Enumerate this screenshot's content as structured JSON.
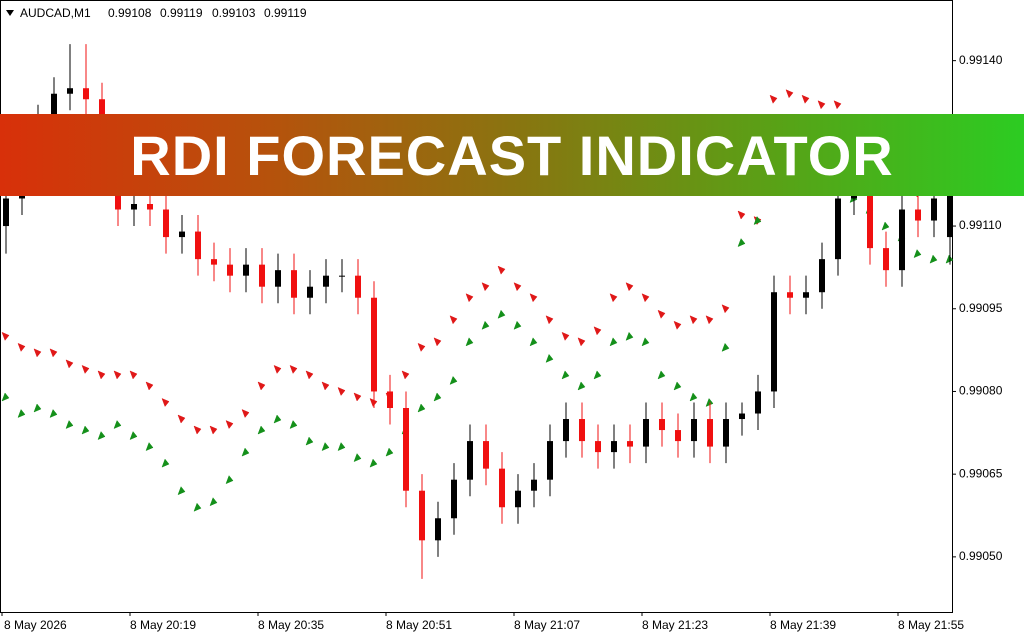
{
  "banner": {
    "title": "RDI FORECAST INDICATOR"
  },
  "chart_data": {
    "type": "candlestick",
    "title": "AUDCAD,M1",
    "categories": [
      "8 May 2026",
      null,
      null,
      null,
      null,
      null,
      null,
      null,
      "8 May 20:19",
      null,
      null,
      null,
      null,
      null,
      null,
      null,
      "8 May 20:35",
      null,
      null,
      null,
      null,
      null,
      null,
      null,
      "8 May 20:51",
      null,
      null,
      null,
      null,
      null,
      null,
      null,
      "8 May 21:07",
      null,
      null,
      null,
      null,
      null,
      null,
      null,
      "8 May 21:23",
      null,
      null,
      null,
      null,
      null,
      null,
      null,
      "8 May 21:39",
      null,
      null,
      null,
      null,
      null,
      null,
      null,
      "8 May 21:55",
      null,
      null,
      null
    ],
    "open": [
      0.9911,
      0.99115,
      0.99124,
      0.99129,
      0.99134,
      0.99135,
      0.99133,
      0.9912,
      0.99113,
      0.99114,
      0.99113,
      0.99108,
      0.99109,
      0.99104,
      0.99103,
      0.99101,
      0.99103,
      0.99099,
      0.99102,
      0.99097,
      0.99099,
      0.99101,
      0.99101,
      0.99097,
      0.9908,
      0.99077,
      0.99062,
      0.99053,
      0.99057,
      0.99064,
      0.99071,
      0.99066,
      0.99059,
      0.99062,
      0.99064,
      0.99071,
      0.99075,
      0.99071,
      0.99069,
      0.99071,
      0.9907,
      0.99075,
      0.99073,
      0.99071,
      0.99075,
      0.9907,
      0.99075,
      0.99076,
      0.9908,
      0.99098,
      0.99097,
      0.99098,
      0.99104,
      0.99115,
      0.99116,
      0.99106,
      0.99102,
      0.99113,
      0.99111,
      0.99108
    ],
    "high": [
      0.9912,
      0.99127,
      0.99132,
      0.99137,
      0.99143,
      0.99143,
      0.99136,
      0.99123,
      0.99117,
      0.99117,
      0.99116,
      0.99112,
      0.99112,
      0.99107,
      0.99106,
      0.99106,
      0.99106,
      0.99105,
      0.99105,
      0.99102,
      0.99104,
      0.99104,
      0.99104,
      0.991,
      0.99083,
      0.9908,
      0.99065,
      0.9906,
      0.99067,
      0.99074,
      0.99074,
      0.99069,
      0.99065,
      0.99067,
      0.99074,
      0.99078,
      0.99078,
      0.99074,
      0.99074,
      0.99074,
      0.99078,
      0.99078,
      0.99076,
      0.99078,
      0.99078,
      0.99078,
      0.99078,
      0.99083,
      0.99101,
      0.99101,
      0.99101,
      0.99107,
      0.99118,
      0.99119,
      0.99119,
      0.99109,
      0.99116,
      0.99116,
      0.99118,
      0.99119
    ],
    "low": [
      0.99105,
      0.99112,
      0.99121,
      0.99126,
      0.99131,
      0.9913,
      0.99117,
      0.9911,
      0.9911,
      0.9911,
      0.99105,
      0.99105,
      0.99101,
      0.991,
      0.99098,
      0.99098,
      0.99096,
      0.99096,
      0.99094,
      0.99094,
      0.99096,
      0.99098,
      0.99094,
      0.99077,
      0.99074,
      0.99059,
      0.99046,
      0.9905,
      0.99054,
      0.99061,
      0.99063,
      0.99056,
      0.99056,
      0.99059,
      0.99061,
      0.99068,
      0.99068,
      0.99066,
      0.99066,
      0.99067,
      0.99067,
      0.9907,
      0.99068,
      0.99068,
      0.99067,
      0.99067,
      0.99072,
      0.99073,
      0.99077,
      0.99094,
      0.99094,
      0.99095,
      0.99101,
      0.99112,
      0.99103,
      0.99099,
      0.99099,
      0.99108,
      0.99108,
      0.99103
    ],
    "close": [
      0.99115,
      0.99124,
      0.99129,
      0.99134,
      0.99135,
      0.99133,
      0.9912,
      0.99113,
      0.99114,
      0.99113,
      0.99108,
      0.99109,
      0.99104,
      0.99103,
      0.99101,
      0.99103,
      0.99099,
      0.99102,
      0.99097,
      0.99099,
      0.99101,
      0.99101,
      0.99097,
      0.9908,
      0.99077,
      0.99062,
      0.99053,
      0.99057,
      0.99064,
      0.99071,
      0.99066,
      0.99059,
      0.99062,
      0.99064,
      0.99071,
      0.99075,
      0.99071,
      0.99069,
      0.99071,
      0.9907,
      0.99075,
      0.99073,
      0.99071,
      0.99075,
      0.9907,
      0.99075,
      0.99076,
      0.9908,
      0.99098,
      0.99097,
      0.99098,
      0.99104,
      0.99115,
      0.99116,
      0.99106,
      0.99102,
      0.99113,
      0.99111,
      0.99115,
      0.99119
    ],
    "up_color": "#000000",
    "down_color": "#f01010",
    "indicators": [
      {
        "color": "#e01818",
        "direction": "down",
        "values": [
          0.9909,
          0.99088,
          0.99087,
          0.99087,
          0.99085,
          0.99084,
          0.99083,
          0.99083,
          0.99083,
          0.99081,
          0.99078,
          0.99075,
          0.99073,
          0.99073,
          0.99074,
          0.99076,
          0.99081,
          0.99084,
          0.99084,
          0.99083,
          0.99081,
          0.9908,
          0.99079,
          0.99078,
          0.99079,
          0.99083,
          0.99088,
          0.99089,
          0.99093,
          0.99097,
          0.99099,
          0.99102,
          0.99099,
          0.99097,
          0.99093,
          0.9909,
          0.99089,
          0.99091,
          0.99097,
          0.99099,
          0.99097,
          0.99094,
          0.99092,
          0.99093,
          0.99093,
          0.99095,
          0.99112,
          0.99111,
          0.99133,
          0.99134,
          0.99133,
          0.99132,
          0.99132,
          0.99128,
          0.99123,
          0.99121,
          0.99119,
          0.99116,
          0.99117,
          0.9912
        ]
      },
      {
        "color": "#14901a",
        "direction": "up",
        "values": [
          0.99079,
          0.99076,
          0.99077,
          0.99076,
          0.99074,
          0.99073,
          0.99072,
          0.99074,
          0.99072,
          0.9907,
          0.99067,
          0.99062,
          0.99059,
          0.9906,
          0.99064,
          0.99069,
          0.99073,
          0.99075,
          0.99074,
          0.99071,
          0.9907,
          0.9907,
          0.99068,
          0.99067,
          0.99069,
          0.99073,
          0.99077,
          0.99079,
          0.99082,
          0.99089,
          0.99092,
          0.99094,
          0.99092,
          0.99089,
          0.99086,
          0.99083,
          0.99081,
          0.99083,
          0.99089,
          0.9909,
          0.99089,
          0.99083,
          0.99081,
          0.99079,
          0.99078,
          0.99088,
          0.99107,
          0.99111,
          0.9912,
          0.99121,
          0.99121,
          0.9912,
          0.99118,
          0.99115,
          0.99113,
          0.9911,
          0.99108,
          0.99105,
          0.99104,
          0.99104
        ]
      }
    ],
    "ylim": [
      0.9904,
      0.99151
    ],
    "yticks": [
      {
        "value": 0.9914,
        "label": "0.99140"
      },
      {
        "value": 0.9911,
        "label": "0.99110"
      },
      0.99095,
      {
        "value": 0.9908,
        "label": "0.99080"
      },
      0.99065,
      {
        "value": 0.9905,
        "label": "0.99050"
      }
    ]
  }
}
